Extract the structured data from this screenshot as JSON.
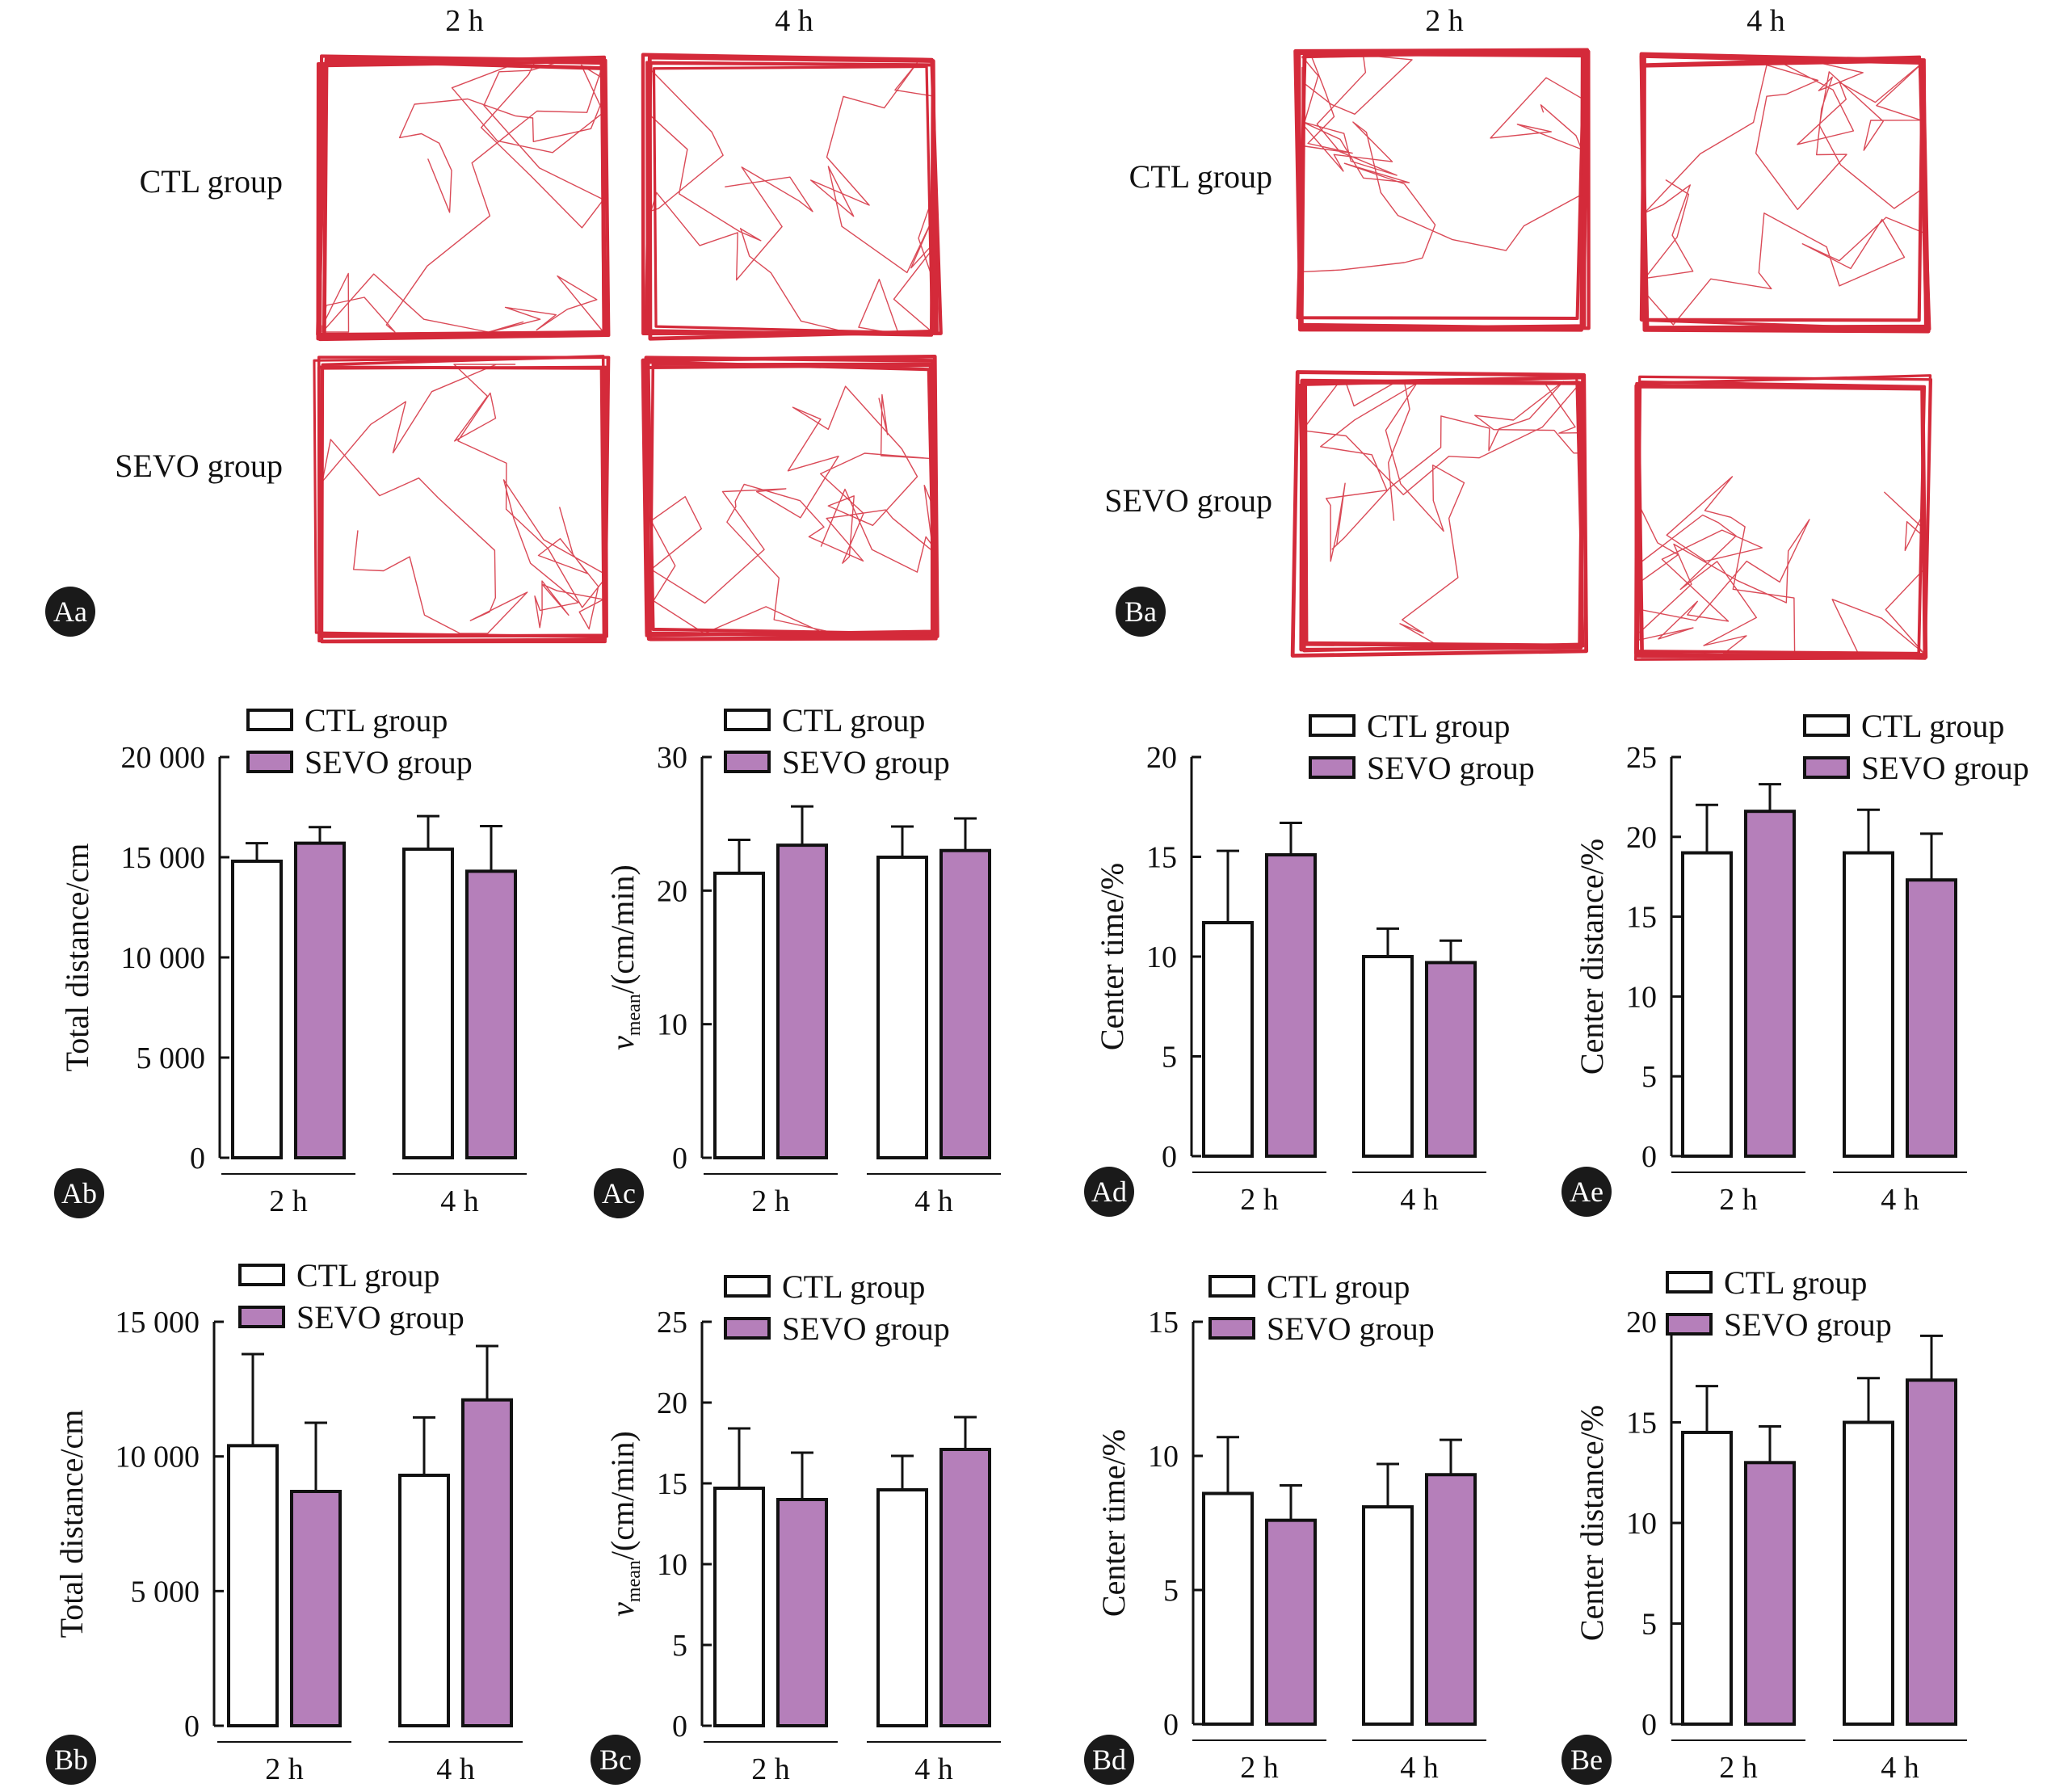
{
  "colors": {
    "ctl_fill": "#ffffff",
    "sevo_fill": "#b57fba",
    "track": "#d42a3a",
    "badge": "#1a1a1a"
  },
  "tracks": [
    {
      "panel": "Aa",
      "columns": [
        "2 h",
        "4 h"
      ],
      "rows": [
        "CTL group",
        "SEVO group"
      ]
    },
    {
      "panel": "Ba",
      "columns": [
        "2 h",
        "4 h"
      ],
      "rows": [
        "CTL group",
        "SEVO group"
      ]
    }
  ],
  "chart_data": [
    {
      "panel": "Ab",
      "type": "bar",
      "ylabel": "Total distance/cm",
      "ylim": [
        0,
        20000
      ],
      "yticks": [
        0,
        5000,
        10000,
        15000,
        20000
      ],
      "ytick_labels": [
        "0",
        "5 000",
        "10 000",
        "15 000",
        "20 000"
      ],
      "categories": [
        "2 h",
        "4 h"
      ],
      "series": [
        {
          "name": "CTL group",
          "values": [
            14800,
            15400
          ],
          "errors": [
            900,
            1650
          ]
        },
        {
          "name": "SEVO group",
          "values": [
            15700,
            14300
          ],
          "errors": [
            800,
            2250
          ]
        }
      ]
    },
    {
      "panel": "Ac",
      "type": "bar",
      "ylabel_main": "v",
      "ylabel_sub": "mean",
      "ylabel_rest": "/(cm/min)",
      "ylim": [
        0,
        30
      ],
      "yticks": [
        0,
        10,
        20,
        30
      ],
      "ytick_labels": [
        "0",
        "10",
        "20",
        "30"
      ],
      "categories": [
        "2 h",
        "4 h"
      ],
      "series": [
        {
          "name": "CTL group",
          "values": [
            21.3,
            22.5
          ],
          "errors": [
            2.5,
            2.3
          ]
        },
        {
          "name": "SEVO group",
          "values": [
            23.4,
            23.0
          ],
          "errors": [
            2.9,
            2.4
          ]
        }
      ]
    },
    {
      "panel": "Ad",
      "type": "bar",
      "ylabel": "Center time/%",
      "ylim": [
        0,
        20
      ],
      "yticks": [
        0,
        5,
        10,
        15,
        20
      ],
      "ytick_labels": [
        "0",
        "5",
        "10",
        "15",
        "20"
      ],
      "categories": [
        "2 h",
        "4 h"
      ],
      "series": [
        {
          "name": "CTL group",
          "values": [
            11.7,
            10.0
          ],
          "errors": [
            3.6,
            1.4
          ]
        },
        {
          "name": "SEVO group",
          "values": [
            15.1,
            9.7
          ],
          "errors": [
            1.6,
            1.1
          ]
        }
      ]
    },
    {
      "panel": "Ae",
      "type": "bar",
      "ylabel": "Center distance/%",
      "ylim": [
        0,
        25
      ],
      "yticks": [
        0,
        5,
        10,
        15,
        20,
        25
      ],
      "ytick_labels": [
        "0",
        "5",
        "10",
        "15",
        "20",
        "25"
      ],
      "categories": [
        "2 h",
        "4 h"
      ],
      "series": [
        {
          "name": "CTL group",
          "values": [
            19.0,
            19.0
          ],
          "errors": [
            3.0,
            2.7
          ]
        },
        {
          "name": "SEVO group",
          "values": [
            21.6,
            17.3
          ],
          "errors": [
            1.7,
            2.9
          ]
        }
      ]
    },
    {
      "panel": "Bb",
      "type": "bar",
      "ylabel": "Total distance/cm",
      "ylim": [
        0,
        15000
      ],
      "yticks": [
        0,
        5000,
        10000,
        15000
      ],
      "ytick_labels": [
        "0",
        "5 000",
        "10 000",
        "15 000"
      ],
      "categories": [
        "2 h",
        "4 h"
      ],
      "series": [
        {
          "name": "CTL group",
          "values": [
            10400,
            9300
          ],
          "errors": [
            3400,
            2150
          ]
        },
        {
          "name": "SEVO group",
          "values": [
            8700,
            12100
          ],
          "errors": [
            2550,
            2000
          ]
        }
      ]
    },
    {
      "panel": "Bc",
      "type": "bar",
      "ylabel_main": "v",
      "ylabel_sub": "mean",
      "ylabel_rest": "/(cm/min)",
      "ylim": [
        0,
        25
      ],
      "yticks": [
        0,
        5,
        10,
        15,
        20,
        25
      ],
      "ytick_labels": [
        "0",
        "5",
        "10",
        "15",
        "20",
        "25"
      ],
      "categories": [
        "2 h",
        "4 h"
      ],
      "series": [
        {
          "name": "CTL group",
          "values": [
            14.7,
            14.6
          ],
          "errors": [
            3.7,
            2.1
          ]
        },
        {
          "name": "SEVO group",
          "values": [
            14.0,
            17.1
          ],
          "errors": [
            2.9,
            2.0
          ]
        }
      ]
    },
    {
      "panel": "Bd",
      "type": "bar",
      "ylabel": "Center time/%",
      "ylim": [
        0,
        15
      ],
      "yticks": [
        0,
        5,
        10,
        15
      ],
      "ytick_labels": [
        "0",
        "5",
        "10",
        "15"
      ],
      "categories": [
        "2 h",
        "4 h"
      ],
      "series": [
        {
          "name": "CTL group",
          "values": [
            8.6,
            8.1
          ],
          "errors": [
            2.1,
            1.6
          ]
        },
        {
          "name": "SEVO group",
          "values": [
            7.6,
            9.3
          ],
          "errors": [
            1.3,
            1.3
          ]
        }
      ]
    },
    {
      "panel": "Be",
      "type": "bar",
      "ylabel": "Center distance/%",
      "ylim": [
        0,
        20
      ],
      "yticks": [
        0,
        5,
        10,
        15,
        20
      ],
      "ytick_labels": [
        "0",
        "5",
        "10",
        "15",
        "20"
      ],
      "categories": [
        "2 h",
        "4 h"
      ],
      "series": [
        {
          "name": "CTL group",
          "values": [
            14.5,
            15.0
          ],
          "errors": [
            2.3,
            2.2
          ]
        },
        {
          "name": "SEVO group",
          "values": [
            13.0,
            17.1
          ],
          "errors": [
            1.8,
            2.2
          ]
        }
      ]
    }
  ]
}
